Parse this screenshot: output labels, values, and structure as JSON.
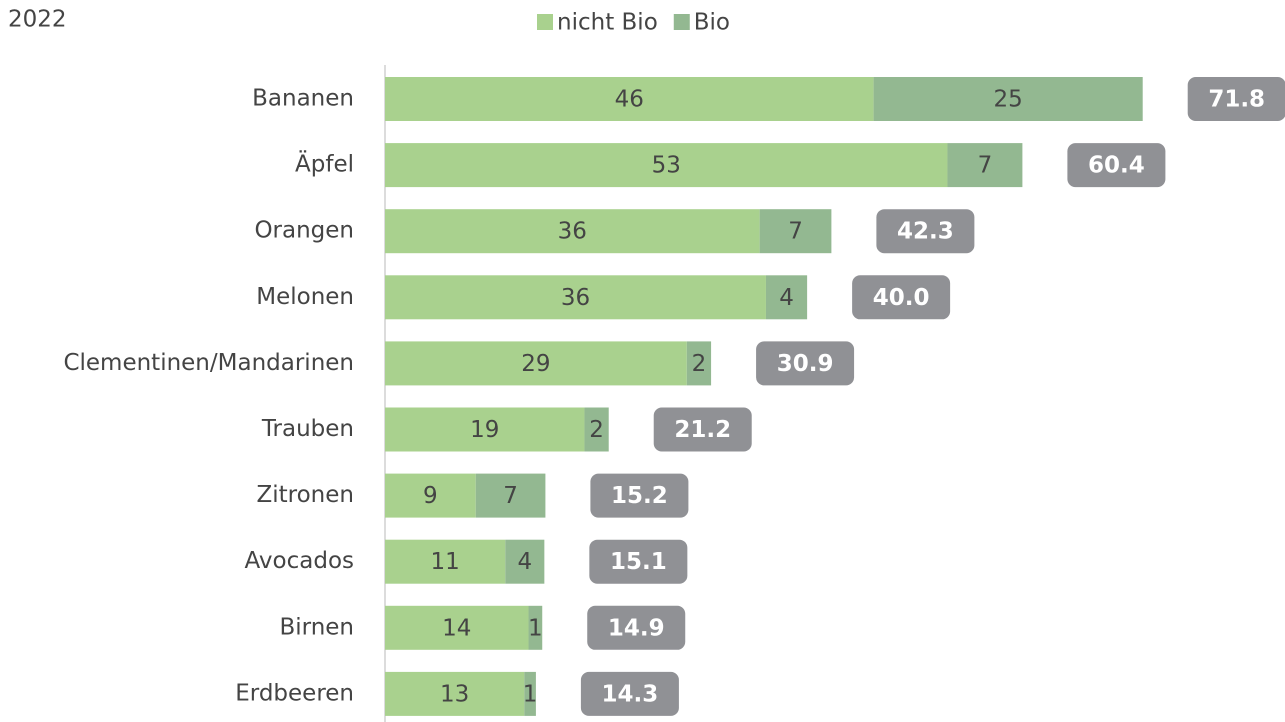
{
  "chart_data": {
    "type": "stacked_bar_horizontal",
    "title": "2022",
    "categories": [
      "Bananen",
      "Äpfel",
      "Orangen",
      "Melonen",
      "Clementinen/Mandarinen",
      "Trauben",
      "Zitronen",
      "Avocados",
      "Birnen",
      "Erdbeeren"
    ],
    "series": [
      {
        "name": "nicht Bio",
        "color": "#a9d18e",
        "values": [
          46.3,
          53.3,
          35.5,
          36.1,
          28.6,
          18.9,
          8.6,
          11.4,
          13.6,
          13.2
        ],
        "value_labels": [
          "46",
          "53",
          "36",
          "36",
          "29",
          "19",
          "9",
          "11",
          "14",
          "13"
        ]
      },
      {
        "name": "Bio",
        "color": "#93b891",
        "values": [
          25.5,
          7.1,
          6.8,
          3.9,
          2.3,
          2.3,
          6.6,
          3.7,
          1.3,
          1.1
        ],
        "value_labels": [
          "25",
          "7",
          "7",
          "4",
          "2",
          "2",
          "7",
          "4",
          "1",
          "1"
        ]
      }
    ],
    "totals": [
      71.8,
      60.4,
      42.3,
      40.0,
      30.9,
      21.2,
      15.2,
      15.1,
      14.9,
      14.3
    ],
    "total_labels": [
      "71.8",
      "60.4",
      "42.3",
      "40.0",
      "30.9",
      "21.2",
      "15.2",
      "15.1",
      "14.9",
      "14.3"
    ],
    "total_color": "#909195",
    "xlim": [
      0,
      85
    ]
  }
}
